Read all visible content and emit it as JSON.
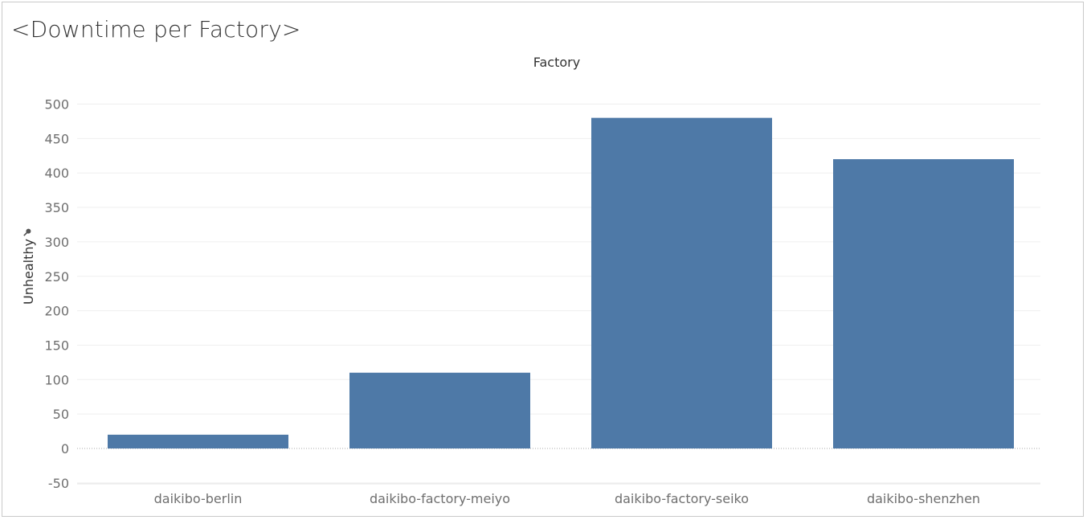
{
  "chart_data": {
    "type": "bar",
    "title": "<Downtime per Factory>",
    "xlabel": "Factory",
    "ylabel": "Unhealthy",
    "categories": [
      "daikibo-berlin",
      "daikibo-factory-meiyo",
      "daikibo-factory-seiko",
      "daikibo-shenzhen"
    ],
    "values": [
      20,
      110,
      480,
      420
    ],
    "ylim": [
      -60,
      500
    ],
    "yticks": [
      500,
      450,
      400,
      350,
      300,
      250,
      200,
      150,
      100,
      50,
      0,
      -50
    ],
    "grid": true,
    "bar_color": "#4e79a7",
    "ylabel_icon": "pin-icon"
  }
}
